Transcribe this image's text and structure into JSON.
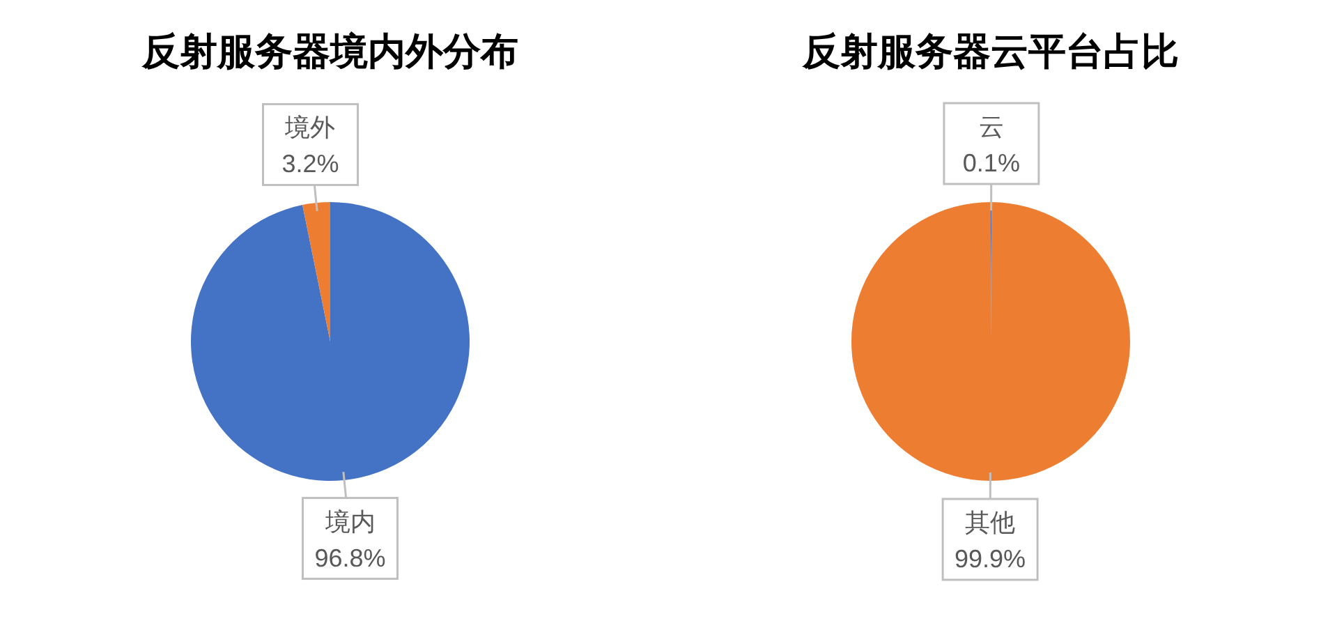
{
  "chart_data": [
    {
      "type": "pie",
      "title": "反射服务器境内外分布",
      "categories": [
        "境内",
        "境外"
      ],
      "values": [
        96.8,
        3.2
      ],
      "colors": [
        "#4472c4",
        "#ed7d31"
      ],
      "value_labels": [
        "96.8%",
        "3.2%"
      ]
    },
    {
      "type": "pie",
      "title": "反射服务器云平台占比",
      "categories": [
        "云",
        "其他"
      ],
      "values": [
        0.1,
        99.9
      ],
      "colors": [
        "#4472c4",
        "#ed7d31"
      ],
      "value_labels": [
        "0.1%",
        "99.9%"
      ]
    }
  ]
}
